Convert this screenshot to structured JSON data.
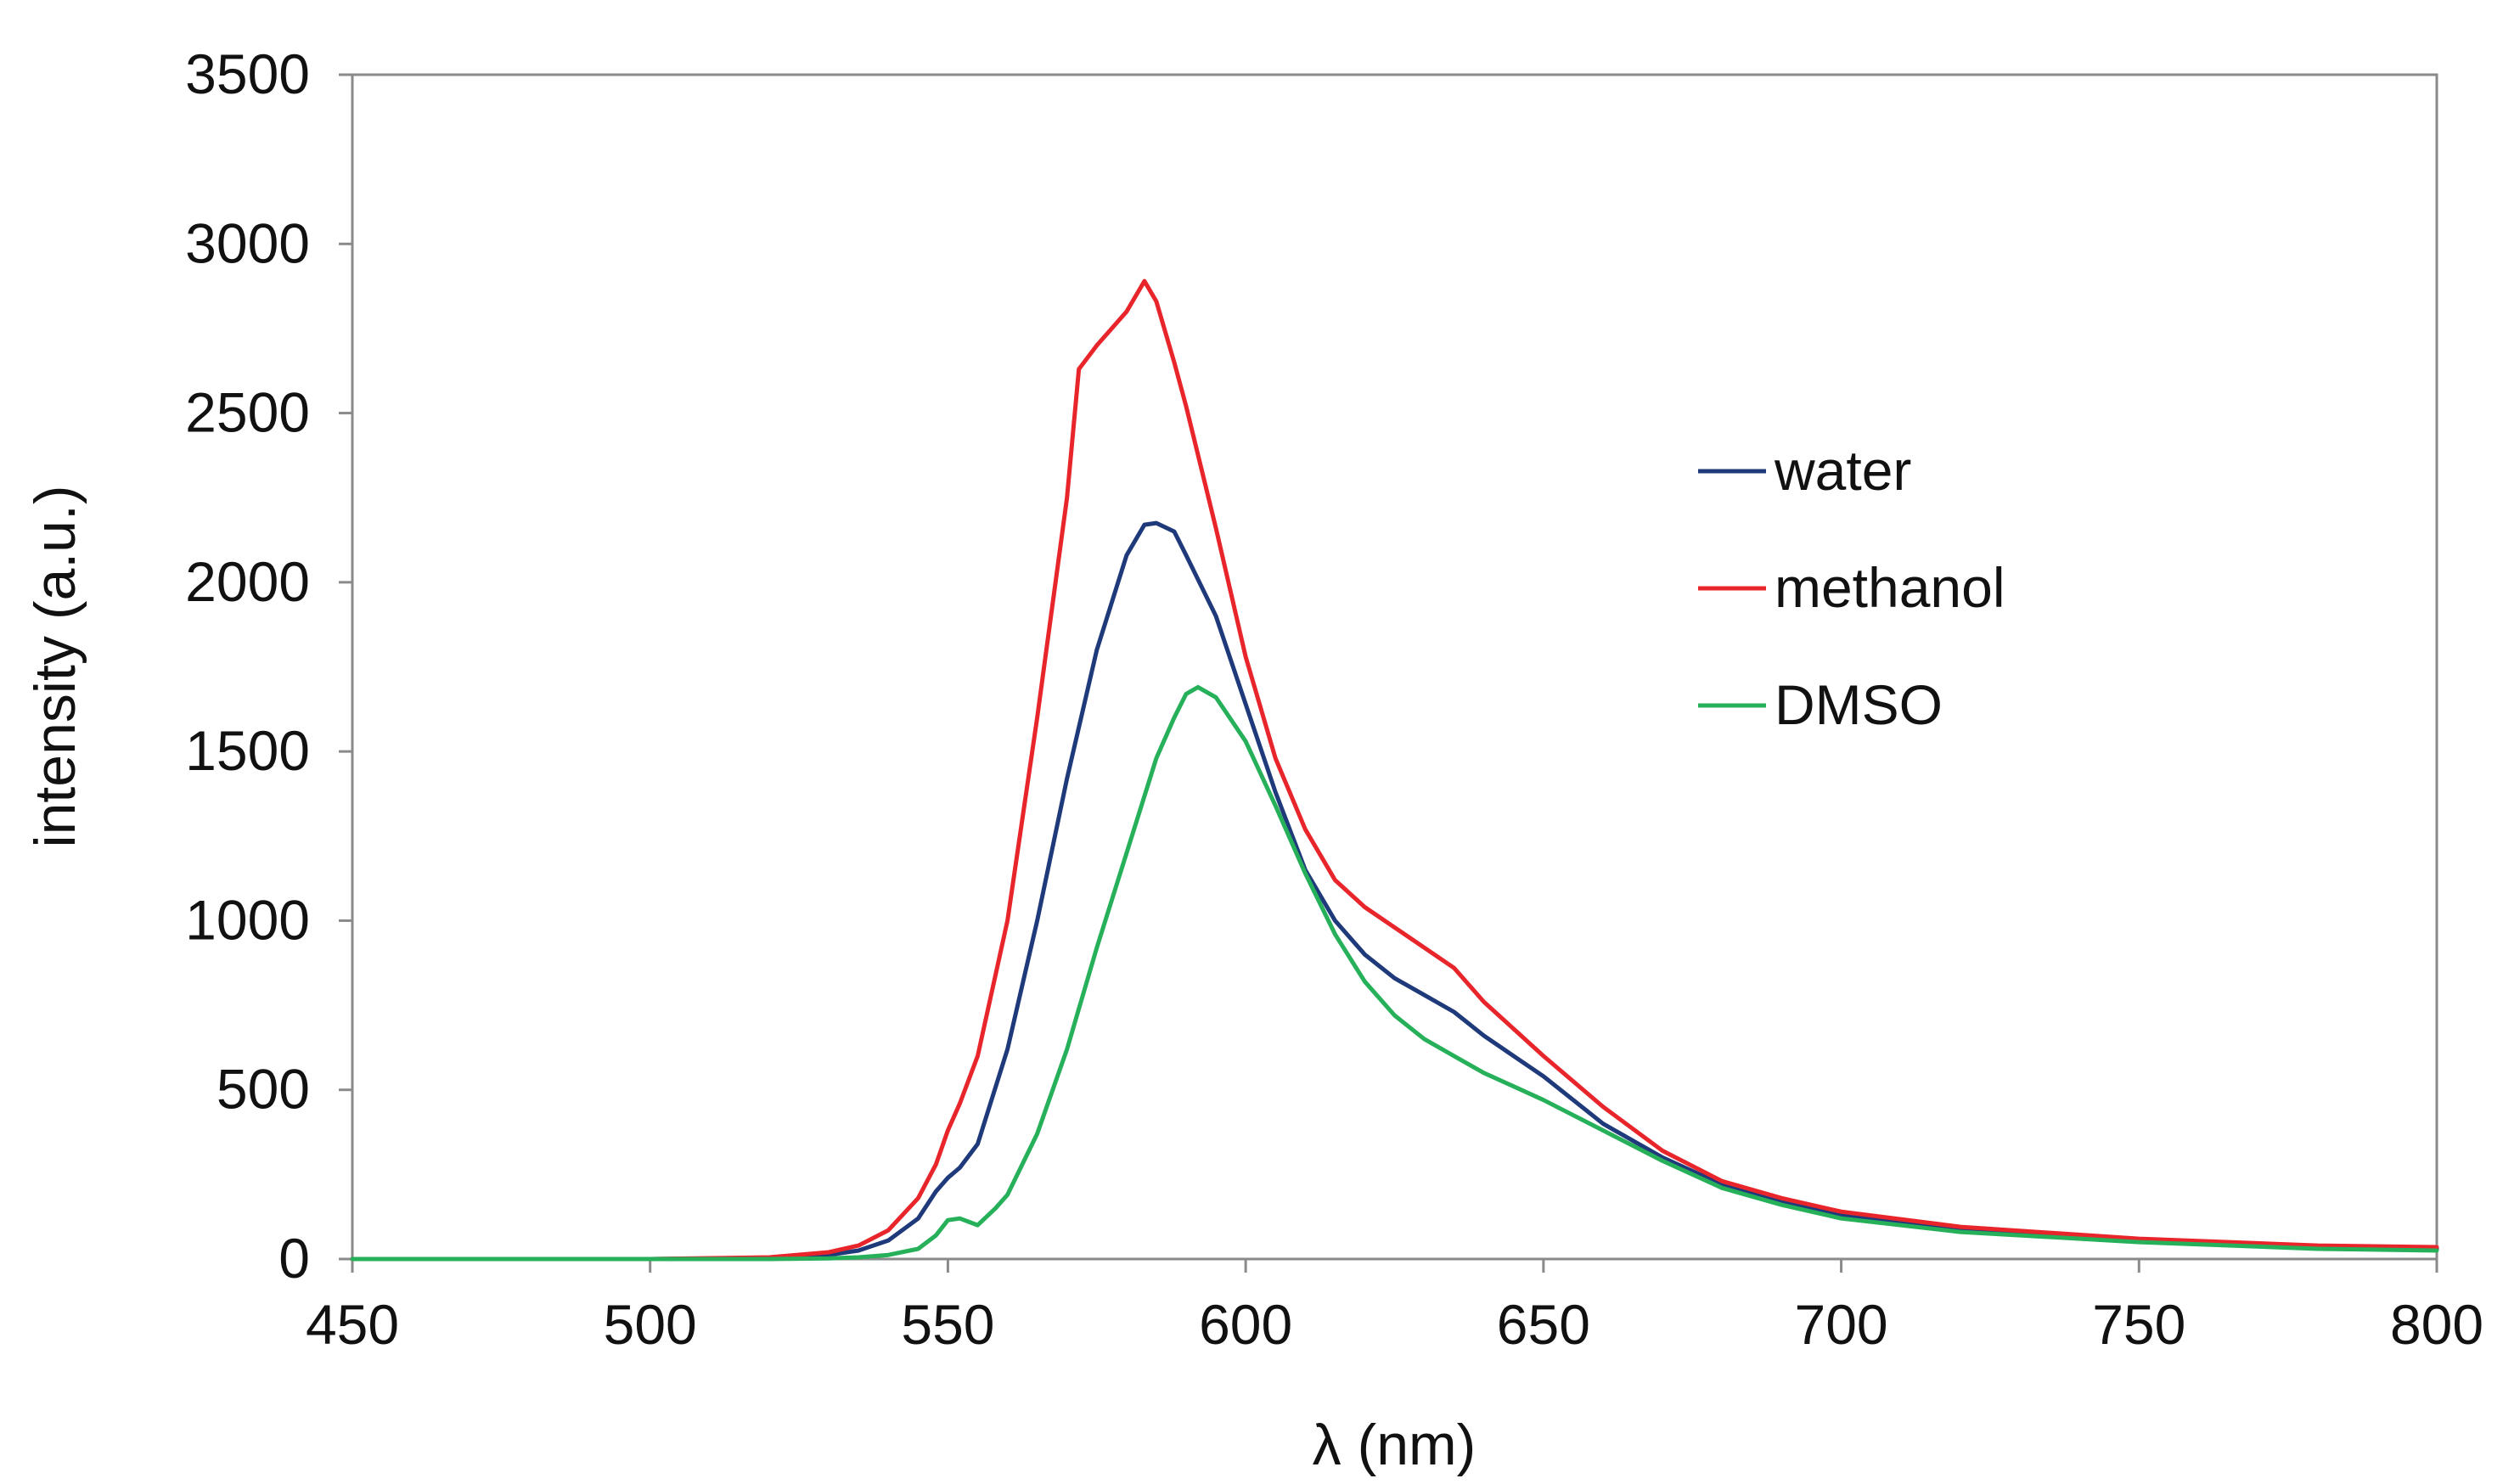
{
  "chart_data": {
    "type": "line",
    "title": "",
    "xlabel": "λ (nm)",
    "ylabel": "intensity (a.u.)",
    "xlim": [
      450,
      800
    ],
    "ylim": [
      0,
      3500
    ],
    "xticks": [
      450,
      500,
      550,
      600,
      650,
      700,
      750,
      800
    ],
    "yticks": [
      0,
      500,
      1000,
      1500,
      2000,
      2500,
      3000,
      3500
    ],
    "grid": false,
    "legend_position": "right",
    "series": [
      {
        "name": "water",
        "color": "#1f3a7a",
        "x": [
          450,
          500,
          520,
          530,
          535,
          540,
          545,
          548,
          550,
          552,
          555,
          560,
          565,
          570,
          575,
          580,
          583,
          585,
          588,
          590,
          595,
          600,
          605,
          610,
          615,
          620,
          625,
          630,
          635,
          640,
          645,
          650,
          660,
          670,
          680,
          690,
          700,
          720,
          750,
          780,
          800
        ],
        "y": [
          0,
          0,
          3,
          12,
          25,
          55,
          120,
          200,
          240,
          270,
          340,
          620,
          1000,
          1420,
          1800,
          2080,
          2170,
          2175,
          2150,
          2080,
          1900,
          1640,
          1380,
          1150,
          1000,
          900,
          830,
          780,
          730,
          660,
          600,
          540,
          400,
          300,
          220,
          170,
          130,
          90,
          55,
          35,
          30
        ]
      },
      {
        "name": "methanol",
        "color": "#e8252a",
        "x": [
          450,
          500,
          520,
          530,
          535,
          540,
          545,
          548,
          550,
          552,
          555,
          560,
          565,
          570,
          572,
          575,
          580,
          583,
          585,
          588,
          590,
          595,
          600,
          605,
          610,
          615,
          620,
          625,
          630,
          635,
          640,
          645,
          650,
          660,
          670,
          680,
          690,
          700,
          720,
          750,
          780,
          800
        ],
        "y": [
          0,
          0,
          5,
          20,
          40,
          85,
          180,
          280,
          380,
          460,
          600,
          1000,
          1600,
          2250,
          2630,
          2700,
          2800,
          2890,
          2830,
          2650,
          2520,
          2160,
          1780,
          1480,
          1270,
          1120,
          1040,
          980,
          920,
          860,
          760,
          680,
          600,
          450,
          320,
          230,
          180,
          140,
          95,
          60,
          40,
          35
        ]
      },
      {
        "name": "DMSO",
        "color": "#27b05a",
        "x": [
          450,
          500,
          520,
          530,
          535,
          540,
          545,
          548,
          550,
          552,
          555,
          558,
          560,
          565,
          570,
          575,
          580,
          585,
          588,
          590,
          592,
          595,
          600,
          605,
          610,
          615,
          620,
          625,
          630,
          635,
          640,
          645,
          650,
          660,
          670,
          680,
          690,
          700,
          720,
          750,
          780,
          800
        ],
        "y": [
          0,
          0,
          0,
          2,
          5,
          12,
          30,
          70,
          115,
          120,
          100,
          150,
          190,
          370,
          620,
          920,
          1200,
          1480,
          1600,
          1670,
          1690,
          1660,
          1530,
          1340,
          1140,
          960,
          820,
          720,
          650,
          600,
          550,
          510,
          470,
          380,
          290,
          210,
          160,
          120,
          80,
          50,
          30,
          25
        ]
      }
    ]
  }
}
